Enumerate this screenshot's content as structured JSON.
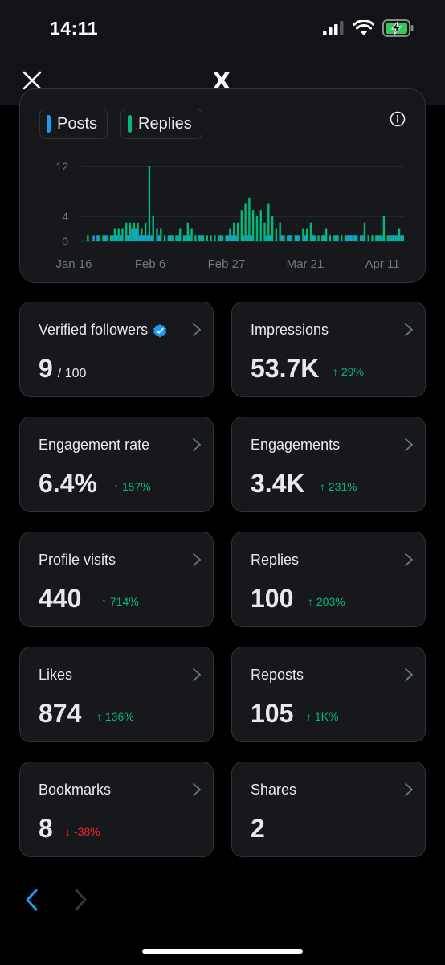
{
  "status_bar": {
    "time": "14:11"
  },
  "header": {
    "logo": "X",
    "close_icon": "close-icon"
  },
  "chart": {
    "legend": [
      {
        "label": "Posts",
        "color": "#1d9bf0"
      },
      {
        "label": "Replies",
        "color": "#00ba7c"
      }
    ],
    "chart_data": {
      "type": "bar",
      "x_tick_labels": [
        "Jan 16",
        "Feb 6",
        "Feb 27",
        "Mar 21",
        "Apr 11"
      ],
      "y_ticks": [
        0,
        4,
        12
      ],
      "ylim": [
        0,
        12
      ],
      "grid": true,
      "series": [
        {
          "name": "Posts",
          "color": "#1d9bf0",
          "values": [
            0,
            0,
            0,
            1,
            1,
            0,
            1,
            0,
            1,
            1,
            1,
            0,
            1,
            2,
            2,
            1,
            1,
            1,
            1,
            0,
            1,
            0,
            0,
            1,
            0,
            1,
            0,
            1,
            1,
            0,
            0,
            1,
            0,
            0,
            0,
            0,
            1,
            0,
            1,
            1,
            1,
            0,
            1,
            1,
            1,
            0,
            0,
            0,
            1,
            1,
            0,
            0,
            1,
            0,
            1,
            0,
            1,
            0,
            1,
            0,
            1,
            0,
            0,
            1,
            0,
            0,
            1,
            0,
            0,
            1,
            1,
            1,
            0,
            1,
            0,
            0,
            0,
            1,
            1,
            0,
            1,
            1,
            1,
            1
          ]
        },
        {
          "name": "Replies",
          "color": "#00ba7c",
          "values": [
            0,
            1,
            0,
            0,
            1,
            1,
            1,
            1,
            2,
            2,
            2,
            3,
            3,
            3,
            3,
            2,
            3,
            12,
            4,
            2,
            2,
            1,
            1,
            1,
            1,
            2,
            1,
            3,
            2,
            1,
            1,
            1,
            1,
            1,
            1,
            1,
            1,
            1,
            2,
            3,
            3,
            5,
            6,
            7,
            5,
            4,
            5,
            3,
            6,
            4,
            2,
            3,
            1,
            1,
            1,
            1,
            1,
            2,
            2,
            3,
            1,
            1,
            1,
            2,
            1,
            1,
            1,
            1,
            1,
            1,
            1,
            1,
            1,
            3,
            1,
            1,
            1,
            1,
            4,
            1,
            1,
            1,
            2,
            1
          ]
        }
      ]
    }
  },
  "metrics": [
    {
      "label": "Verified followers",
      "value": "9",
      "sub": "/ 100",
      "delta": "",
      "verified": true
    },
    {
      "label": "Impressions",
      "value": "53.7K",
      "delta": "29%",
      "direction": "up"
    },
    {
      "label": "Engagement rate",
      "value": "6.4%",
      "delta": "157%",
      "direction": "up"
    },
    {
      "label": "Engagements",
      "value": "3.4K",
      "delta": "231%",
      "direction": "up"
    },
    {
      "label": "Profile visits",
      "value": "440",
      "delta": "714%",
      "direction": "up"
    },
    {
      "label": "Replies",
      "value": "100",
      "delta": "203%",
      "direction": "up"
    },
    {
      "label": "Likes",
      "value": "874",
      "delta": "136%",
      "direction": "up"
    },
    {
      "label": "Reposts",
      "value": "105",
      "delta": "1K%",
      "direction": "up"
    },
    {
      "label": "Bookmarks",
      "value": "8",
      "delta": "-38%",
      "direction": "down"
    },
    {
      "label": "Shares",
      "value": "2",
      "delta": ""
    }
  ],
  "pager": {
    "prev_icon": "chevron-left-icon",
    "next_icon": "chevron-right-icon"
  }
}
